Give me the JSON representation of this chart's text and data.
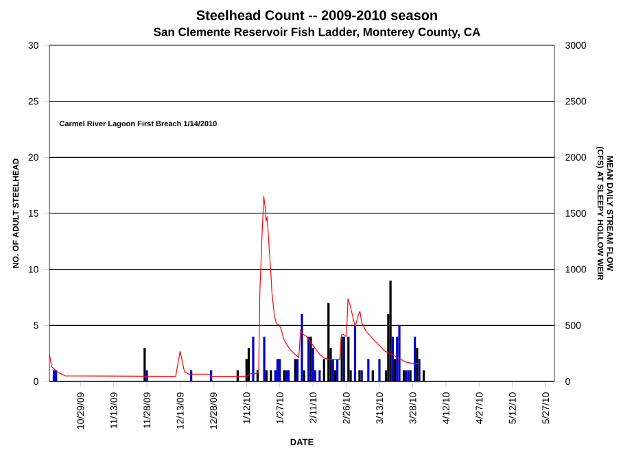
{
  "chart_data": {
    "type": "bar",
    "title": "Steelhead Count -- 2009-2010 season",
    "subtitle": "San Clemente Reservoir Fish Ladder, Monterey County, CA",
    "xlabel": "DATE",
    "ylabel": "NO. OF ADULT STEELHEAD",
    "y2label": "MEAN DAILY STREAM FLOW (CFS) AT SLEEPY HOLLOW WEIR",
    "annotations": [
      "Carmel River Lagoon First Breach 1/14/2010"
    ],
    "xlim": [
      "2009-10-15",
      "2010-05-31"
    ],
    "xticks": [
      {
        "value": "2009-10-29",
        "label": "10/29/09"
      },
      {
        "value": "2009-11-13",
        "label": "11/13/09"
      },
      {
        "value": "2009-11-28",
        "label": "11/28/09"
      },
      {
        "value": "2009-12-13",
        "label": "12/13/09"
      },
      {
        "value": "2009-12-28",
        "label": "12/28/09"
      },
      {
        "value": "2010-01-12",
        "label": "1/12/10"
      },
      {
        "value": "2010-01-27",
        "label": "1/27/10"
      },
      {
        "value": "2010-02-11",
        "label": "2/11/10"
      },
      {
        "value": "2010-02-26",
        "label": "2/26/10"
      },
      {
        "value": "2010-03-13",
        "label": "3/13/10"
      },
      {
        "value": "2010-03-28",
        "label": "3/28/10"
      },
      {
        "value": "2010-04-12",
        "label": "4/12/10"
      },
      {
        "value": "2010-04-27",
        "label": "4/27/10"
      },
      {
        "value": "2010-05-12",
        "label": "5/12/10"
      },
      {
        "value": "2010-05-27",
        "label": "5/27/10"
      }
    ],
    "ylim": [
      0,
      30
    ],
    "yticks": [
      0,
      5,
      10,
      15,
      20,
      25,
      30
    ],
    "y2lim": [
      0,
      3000
    ],
    "y2ticks": [
      0,
      500,
      1000,
      1500,
      2000,
      2500,
      3000
    ],
    "grid": "y",
    "series": [
      {
        "color": "#0000cc",
        "x": [
          "2009-10-17",
          "2009-10-18",
          "2009-11-28",
          "2009-12-18",
          "2009-12-27",
          "2010-01-15",
          "2010-01-20",
          "2010-01-25",
          "2010-01-26",
          "2010-01-27",
          "2010-01-30",
          "2010-01-31",
          "2010-02-04",
          "2010-02-06",
          "2010-02-09",
          "2010-02-11",
          "2010-02-12",
          "2010-02-14",
          "2010-02-20",
          "2010-02-22",
          "2010-02-25",
          "2010-03-02",
          "2010-03-05",
          "2010-03-08",
          "2010-03-13",
          "2010-03-19",
          "2010-03-21",
          "2010-03-22",
          "2010-03-25",
          "2010-03-26",
          "2010-03-29",
          "2010-03-31"
        ],
        "values": [
          1,
          1,
          1,
          1,
          1,
          4,
          4,
          1,
          2,
          2,
          1,
          1,
          2,
          6,
          4,
          3,
          1,
          1,
          2,
          2,
          4,
          5,
          1,
          2,
          2,
          4,
          4,
          5,
          1,
          1,
          4,
          2
        ]
      },
      {
        "color": "#000000",
        "x": [
          "2009-11-27",
          "2010-01-08",
          "2010-01-12",
          "2010-01-13",
          "2010-01-17",
          "2010-01-21",
          "2010-01-23",
          "2010-01-29",
          "2010-02-03",
          "2010-02-07",
          "2010-02-10",
          "2010-02-16",
          "2010-02-18",
          "2010-02-19",
          "2010-02-21",
          "2010-02-24",
          "2010-02-27",
          "2010-02-28",
          "2010-03-04",
          "2010-03-10",
          "2010-03-16",
          "2010-03-17",
          "2010-03-18",
          "2010-03-20",
          "2010-03-24",
          "2010-03-27",
          "2010-03-30",
          "2010-04-02"
        ],
        "values": [
          3,
          1,
          2,
          3,
          1,
          1,
          1,
          1,
          2,
          1,
          4,
          2,
          7,
          3,
          1,
          4,
          4,
          1,
          1,
          1,
          1,
          6,
          9,
          2,
          1,
          1,
          3,
          1
        ]
      },
      {
        "type": "line",
        "axis": "y2",
        "color": "#ff0000",
        "x": [
          "2009-10-15",
          "2009-10-16",
          "2009-10-19",
          "2009-10-22",
          "2009-12-11",
          "2009-12-13",
          "2009-12-15",
          "2009-12-17",
          "2009-12-26",
          "2009-12-27",
          "2010-01-12",
          "2010-01-14",
          "2010-01-17",
          "2010-01-17T12:00",
          "2010-01-18",
          "2010-01-19",
          "2010-01-19T19:00",
          "2010-01-20T10:00",
          "2010-01-20T19:00",
          "2010-01-21T07:00",
          "2010-01-22T02:00",
          "2010-01-22T22:00",
          "2010-01-23T12:00",
          "2010-01-24T14:00",
          "2010-01-25T14:00",
          "2010-01-26T14:00",
          "2010-01-27T17:00",
          "2010-01-28T17:00",
          "2010-01-30T10:00",
          "2010-01-31T19:00",
          "2010-02-02T22:00",
          "2010-02-04T14:00",
          "2010-02-05T10:00",
          "2010-02-06",
          "2010-02-08",
          "2010-02-10",
          "2010-02-12",
          "2010-02-14",
          "2010-02-16",
          "2010-02-18T22:00",
          "2010-02-23",
          "2010-02-23T22:00",
          "2010-02-24T17:00",
          "2010-02-25T22:00",
          "2010-02-26T10:00",
          "2010-02-26T19:00",
          "2010-02-27T10:00",
          "2010-02-28T10:00",
          "2010-03-02T02:00",
          "2010-03-03T07:00",
          "2010-03-04T05:00",
          "2010-03-05",
          "2010-03-07T02:00",
          "2010-03-09T02:00",
          "2010-03-11T05:00",
          "2010-03-13T07:00",
          "2010-03-15T10:00",
          "2010-03-18T12:00",
          "2010-03-21T14:00",
          "2010-03-24T17:00",
          "2010-03-27T19:00",
          "2010-03-30T22:00"
        ],
        "values": [
          245,
          130,
          80,
          50,
          45,
          270,
          85,
          65,
          65,
          45,
          45,
          70,
          70,
          100,
          786,
          1310,
          1652,
          1550,
          1430,
          1470,
          1228,
          987,
          786,
          584,
          511,
          511,
          463,
          382,
          322,
          282,
          242,
          213,
          463,
          430,
          403,
          350,
          294,
          242,
          209,
          193,
          193,
          415,
          420,
          400,
          544,
          737,
          705,
          624,
          484,
          584,
          626,
          524,
          443,
          403,
          354,
          314,
          270,
          242,
          209,
          173,
          161,
          161
        ]
      }
    ]
  }
}
